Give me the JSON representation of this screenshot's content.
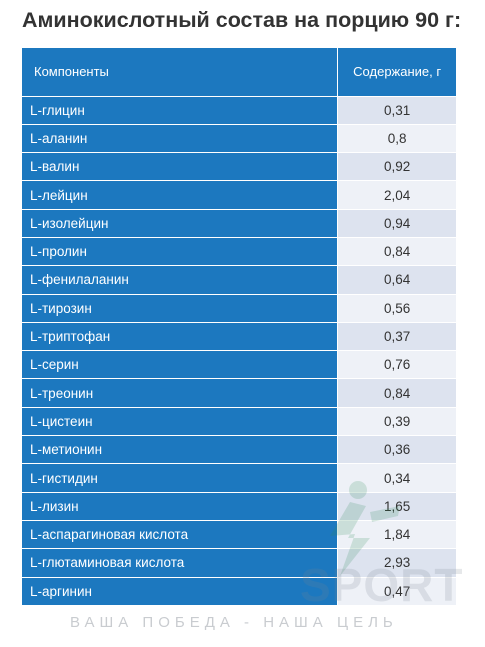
{
  "title": "Аминокислотный состав на порцию 90 г:",
  "table": {
    "headers": {
      "component": "Компоненты",
      "content": "Содержание, г"
    },
    "rows": [
      {
        "name": "L-глицин",
        "value": "0,31"
      },
      {
        "name": "L-аланин",
        "value": "0,8"
      },
      {
        "name": "L-валин",
        "value": "0,92"
      },
      {
        "name": "L-лейцин",
        "value": "2,04"
      },
      {
        "name": "L-изолейцин",
        "value": "0,94"
      },
      {
        "name": "L-пролин",
        "value": "0,84"
      },
      {
        "name": "L-фенилаланин",
        "value": "0,64"
      },
      {
        "name": "L-тирозин",
        "value": "0,56"
      },
      {
        "name": "L-триптофан",
        "value": "0,37"
      },
      {
        "name": "L-серин",
        "value": "0,76"
      },
      {
        "name": "L-треонин",
        "value": "0,84"
      },
      {
        "name": "L-цистеин",
        "value": "0,39"
      },
      {
        "name": "L-метионин",
        "value": "0,36"
      },
      {
        "name": "L-гистидин",
        "value": "0,34"
      },
      {
        "name": "L-лизин",
        "value": "1,65"
      },
      {
        "name": "L-аспарагиновая кислота",
        "value": "1,84"
      },
      {
        "name": "L-глютаминовая кислота",
        "value": "2,93"
      },
      {
        "name": "L-аргинин",
        "value": "0,47"
      }
    ]
  },
  "watermark": {
    "brand": "SPORT",
    "slogan": "ВАША ПОБЕДА - НАША ЦЕЛЬ"
  },
  "colors": {
    "accent": "#1c78bf",
    "row_alt_a": "#dde3ef",
    "row_alt_b": "#eef1f7"
  }
}
